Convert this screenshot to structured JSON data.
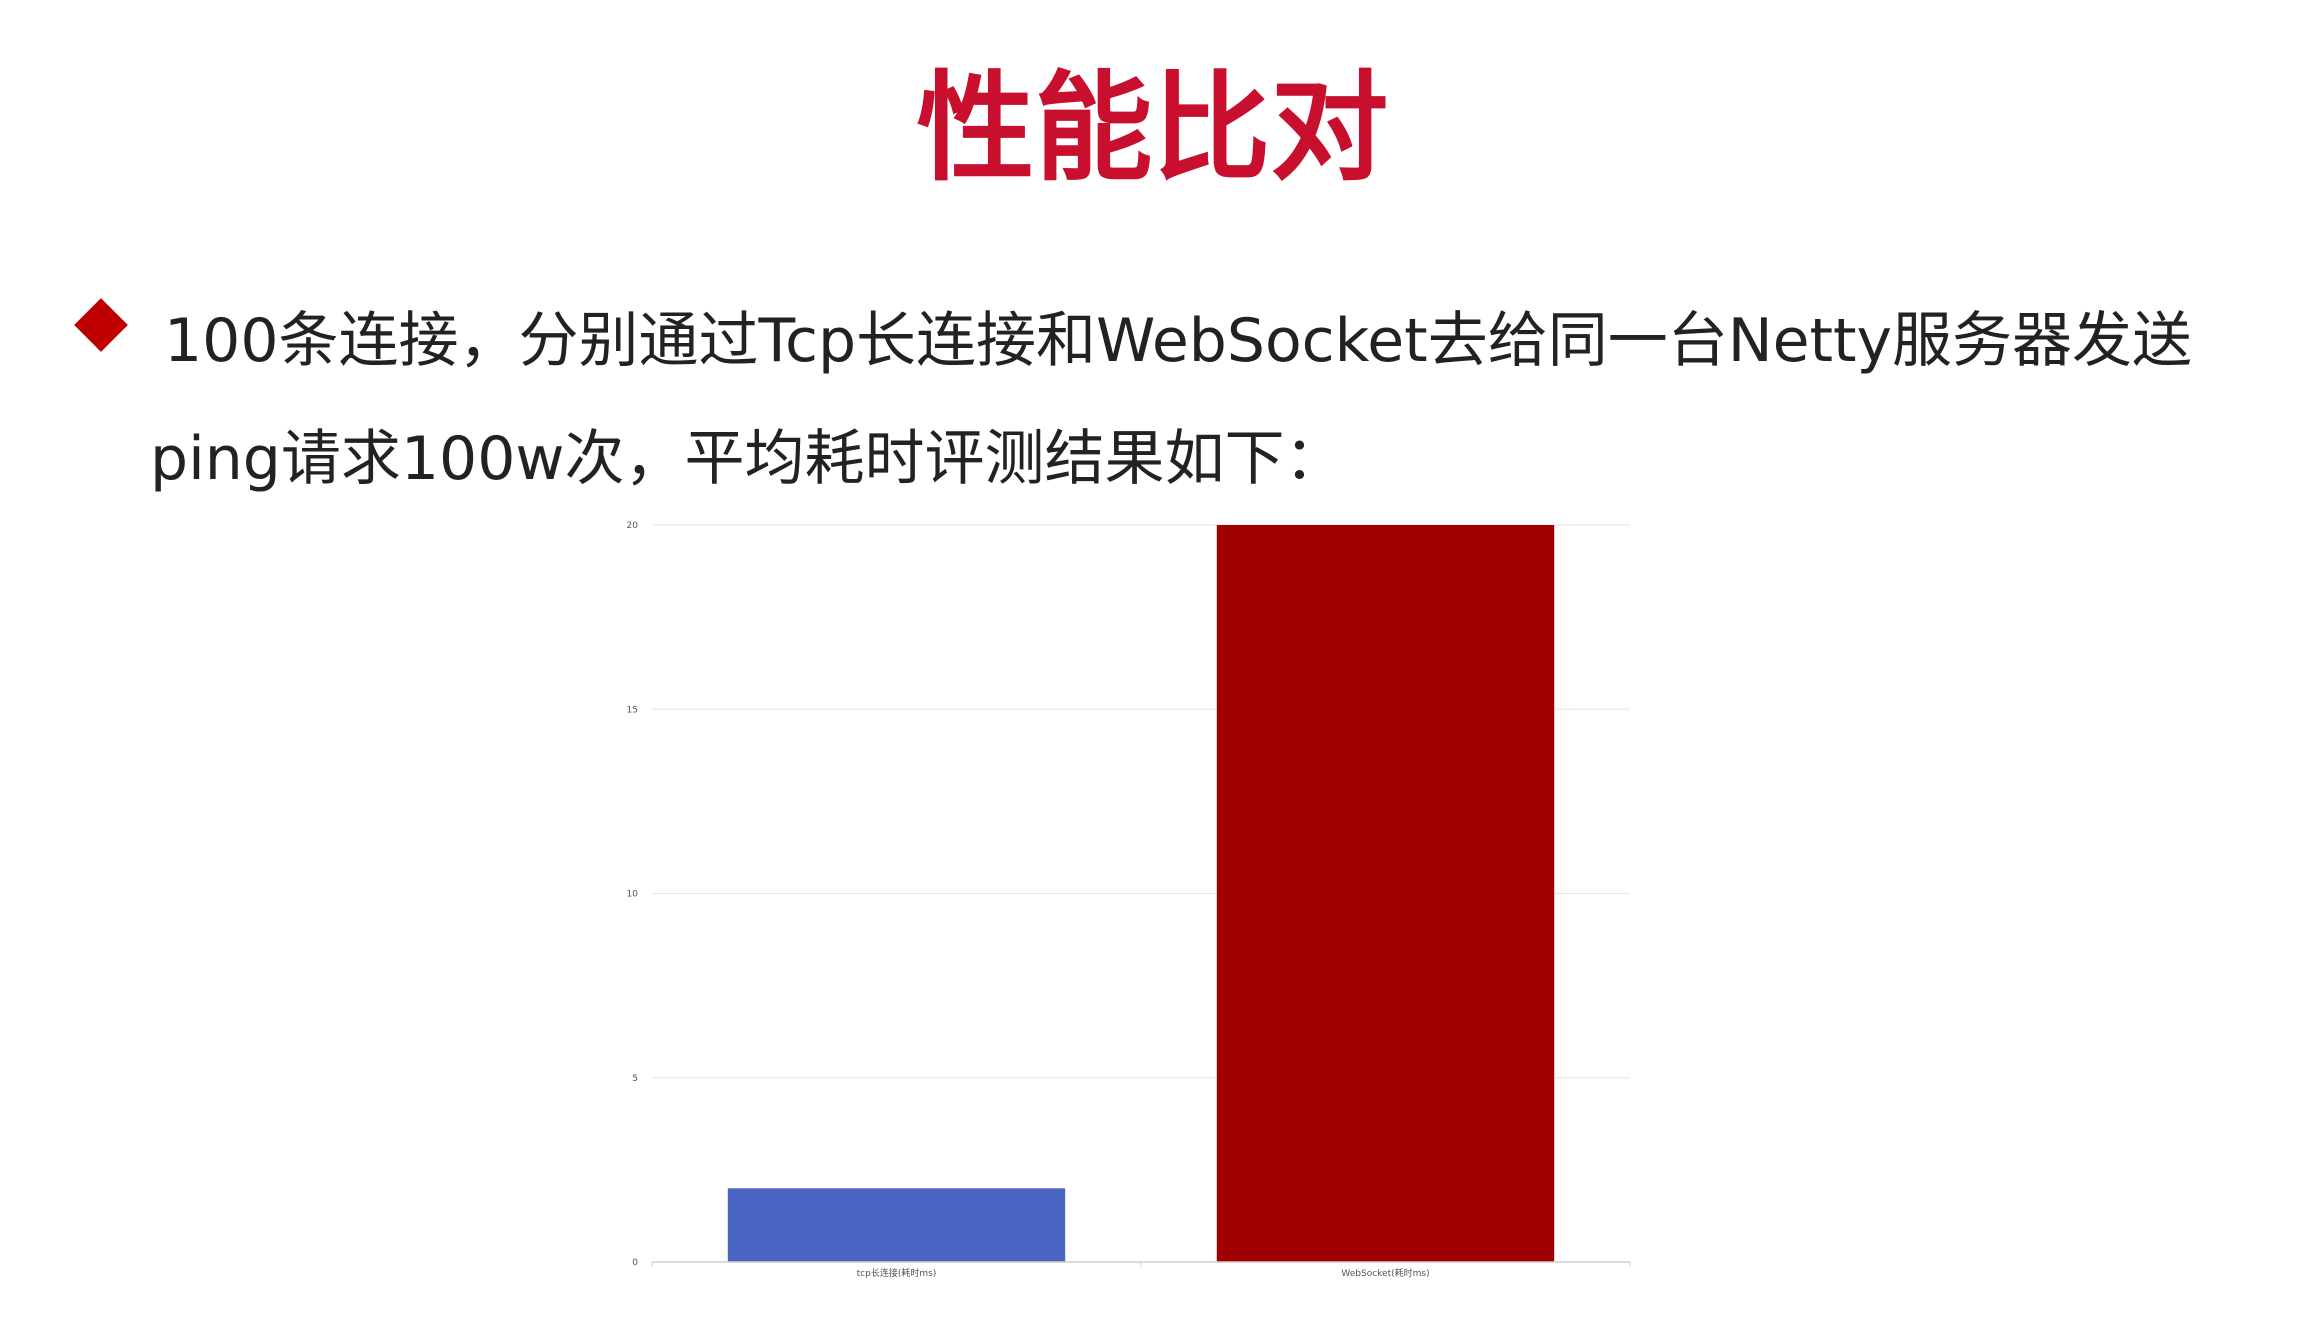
{
  "slide": {
    "title": "性能比对",
    "title_color": "#c8102e",
    "bullet_color": "#c00000",
    "bullet_text": "100条连接，分别通过Tcp长连接和WebSocket去给同一台Netty服务器发送ping请求100w次，平均耗时评测结果如下："
  },
  "chart_data": {
    "type": "bar",
    "categories": [
      "tcp长连接(耗时ms)",
      "WebSocket(耗时ms)"
    ],
    "values": [
      2,
      20
    ],
    "colors": [
      "#4a65c2",
      "#a00000"
    ],
    "ylim": [
      0,
      20
    ],
    "yticks": [
      0,
      5,
      10,
      15,
      20
    ],
    "grid": true,
    "xlabel": "",
    "ylabel": ""
  }
}
